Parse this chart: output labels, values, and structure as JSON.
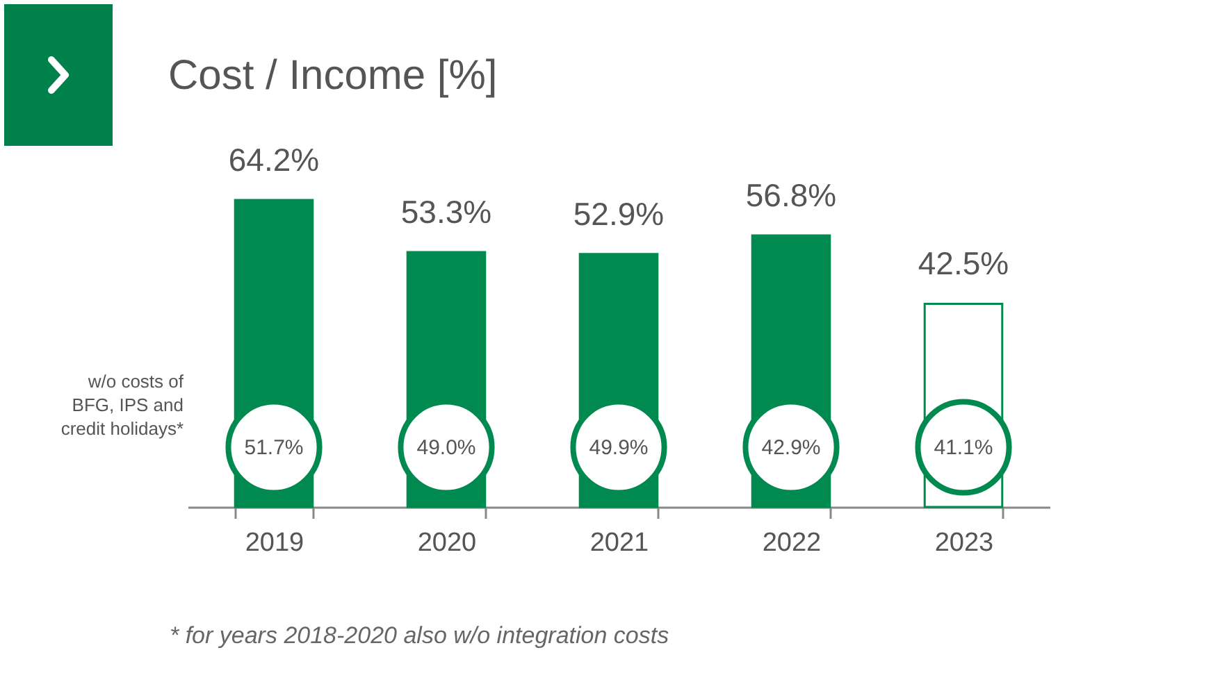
{
  "chart_data": {
    "type": "bar",
    "title": "Cost / Income [%]",
    "categories": [
      "2019",
      "2020",
      "2021",
      "2022",
      "2023"
    ],
    "values": [
      64.2,
      53.3,
      52.9,
      56.8,
      42.5
    ],
    "colors": [
      "#008a50",
      "#008a50",
      "#008a50",
      "#008a50",
      "#ffffff"
    ],
    "value_labels": [
      "64.2%",
      "53.3%",
      "52.9%",
      "56.8%",
      "42.5%"
    ],
    "tick_labels": "x",
    "grid": false,
    "annotations": [
      "51.7%",
      "49.0%",
      "49.9%",
      "42.9%",
      "41.1%",
      "w/o costs of BFG, IPS and credit holidays*",
      "* for years 2018-2020 also w/o integration costs"
    ]
  }
}
